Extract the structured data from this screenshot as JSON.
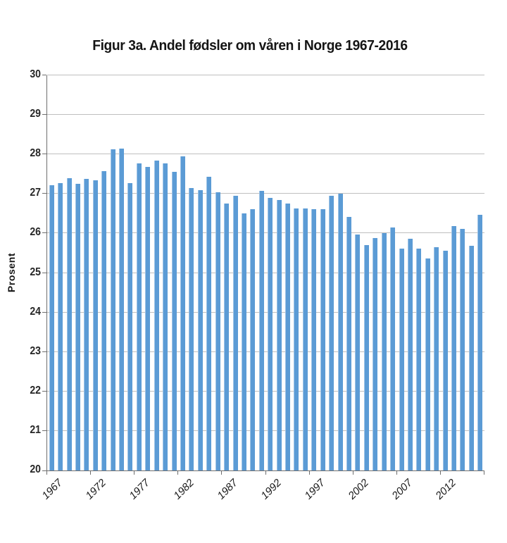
{
  "window": {
    "background": "#ffffff"
  },
  "colors": {
    "bar": "#5b9bd5",
    "bar_highlight": "#9dc3e6",
    "gridline": "#bfbfbf",
    "axis": "#6e6e6e",
    "title_text": "#151515",
    "tick_text": "#262626"
  },
  "chart_data": {
    "type": "bar",
    "title": "Figur 3a. Andel fødsler om våren i Norge 1967-2016",
    "xlabel": "",
    "ylabel": "Prosent",
    "ylim": [
      20,
      30
    ],
    "ytick_step": 1,
    "grid": true,
    "legend": false,
    "bar_color": "#5b9bd5",
    "categories": [
      "1967",
      "1968",
      "1969",
      "1970",
      "1971",
      "1972",
      "1973",
      "1974",
      "1975",
      "1976",
      "1977",
      "1978",
      "1979",
      "1980",
      "1981",
      "1982",
      "1983",
      "1984",
      "1985",
      "1986",
      "1987",
      "1988",
      "1989",
      "1990",
      "1991",
      "1992",
      "1993",
      "1994",
      "1995",
      "1996",
      "1997",
      "1998",
      "1999",
      "2000",
      "2001",
      "2002",
      "2003",
      "2004",
      "2005",
      "2006",
      "2007",
      "2008",
      "2009",
      "2010",
      "2011",
      "2012",
      "2013",
      "2014",
      "2015",
      "2016"
    ],
    "values": [
      27.22,
      27.28,
      27.4,
      27.25,
      27.38,
      27.34,
      27.58,
      28.12,
      28.15,
      27.27,
      27.78,
      27.68,
      27.85,
      27.77,
      27.55,
      27.95,
      27.14,
      27.1,
      27.43,
      27.05,
      26.75,
      26.95,
      26.5,
      26.61,
      27.08,
      26.9,
      26.84,
      26.76,
      26.63,
      26.63,
      26.62,
      26.62,
      26.96,
      27.0,
      26.42,
      25.97,
      25.7,
      25.89,
      26.0,
      26.15,
      25.61,
      25.87,
      25.62,
      25.36,
      25.65,
      25.56,
      26.19,
      26.11,
      25.68,
      26.47
    ],
    "xtick_labels": [
      "1967",
      "1972",
      "1977",
      "1982",
      "1987",
      "1992",
      "1997",
      "2002",
      "2007",
      "2012"
    ],
    "xtick_label_every": 5
  }
}
